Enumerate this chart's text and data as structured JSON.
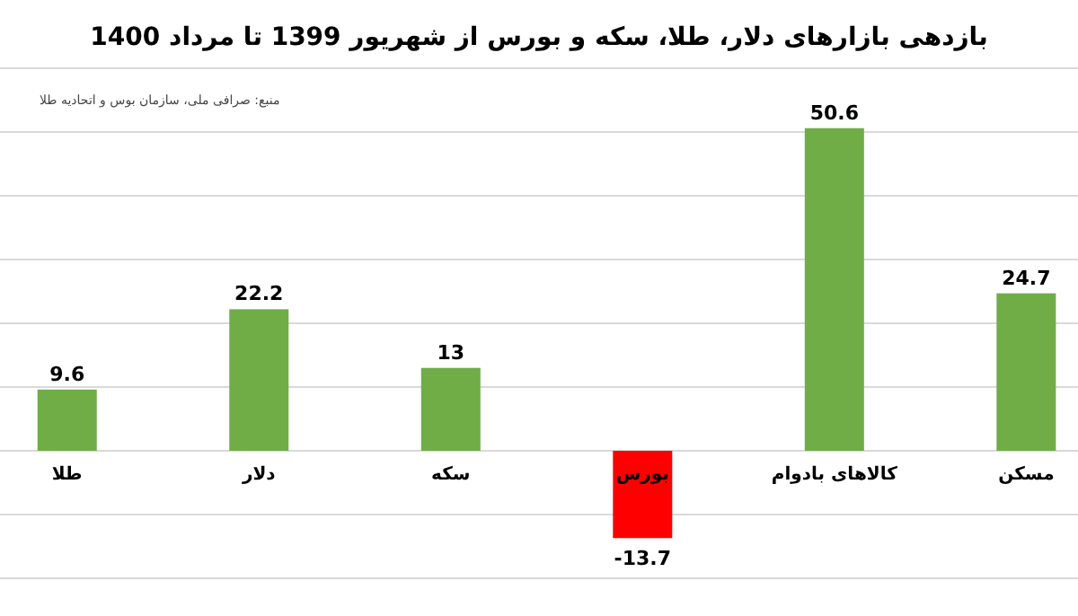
{
  "chart_data": {
    "type": "bar",
    "title": "بازدهی بازارهای دلار، طلا، سکه و بورس از شهریور 1399 تا مرداد 1400",
    "annotations": [
      "منبع: صرافی ملی، سازمان بوس و اتحادیه طلا"
    ],
    "categories": [
      "طلا",
      "دلار",
      "سکه",
      "بورس",
      "کالاهای بادوام",
      "مسکن"
    ],
    "values": [
      9.6,
      22.2,
      13,
      -13.7,
      50.6,
      24.7
    ],
    "colors": [
      "#70ad47",
      "#70ad47",
      "#70ad47",
      "#ff0000",
      "#70ad47",
      "#70ad47"
    ],
    "ylim": [
      -20,
      60
    ],
    "yticks": [
      {
        "value": -20,
        "label": null
      },
      {
        "value": -10,
        "label": null
      },
      {
        "value": 0,
        "label": null
      },
      {
        "value": 10,
        "label": null
      },
      {
        "value": 20,
        "label": null
      },
      {
        "value": 30,
        "label": null
      },
      {
        "value": 40,
        "label": null
      },
      {
        "value": 50,
        "label": null
      },
      {
        "value": 60,
        "label": null
      }
    ],
    "tick_labels": "x",
    "grid": "y",
    "data_labels": true
  }
}
